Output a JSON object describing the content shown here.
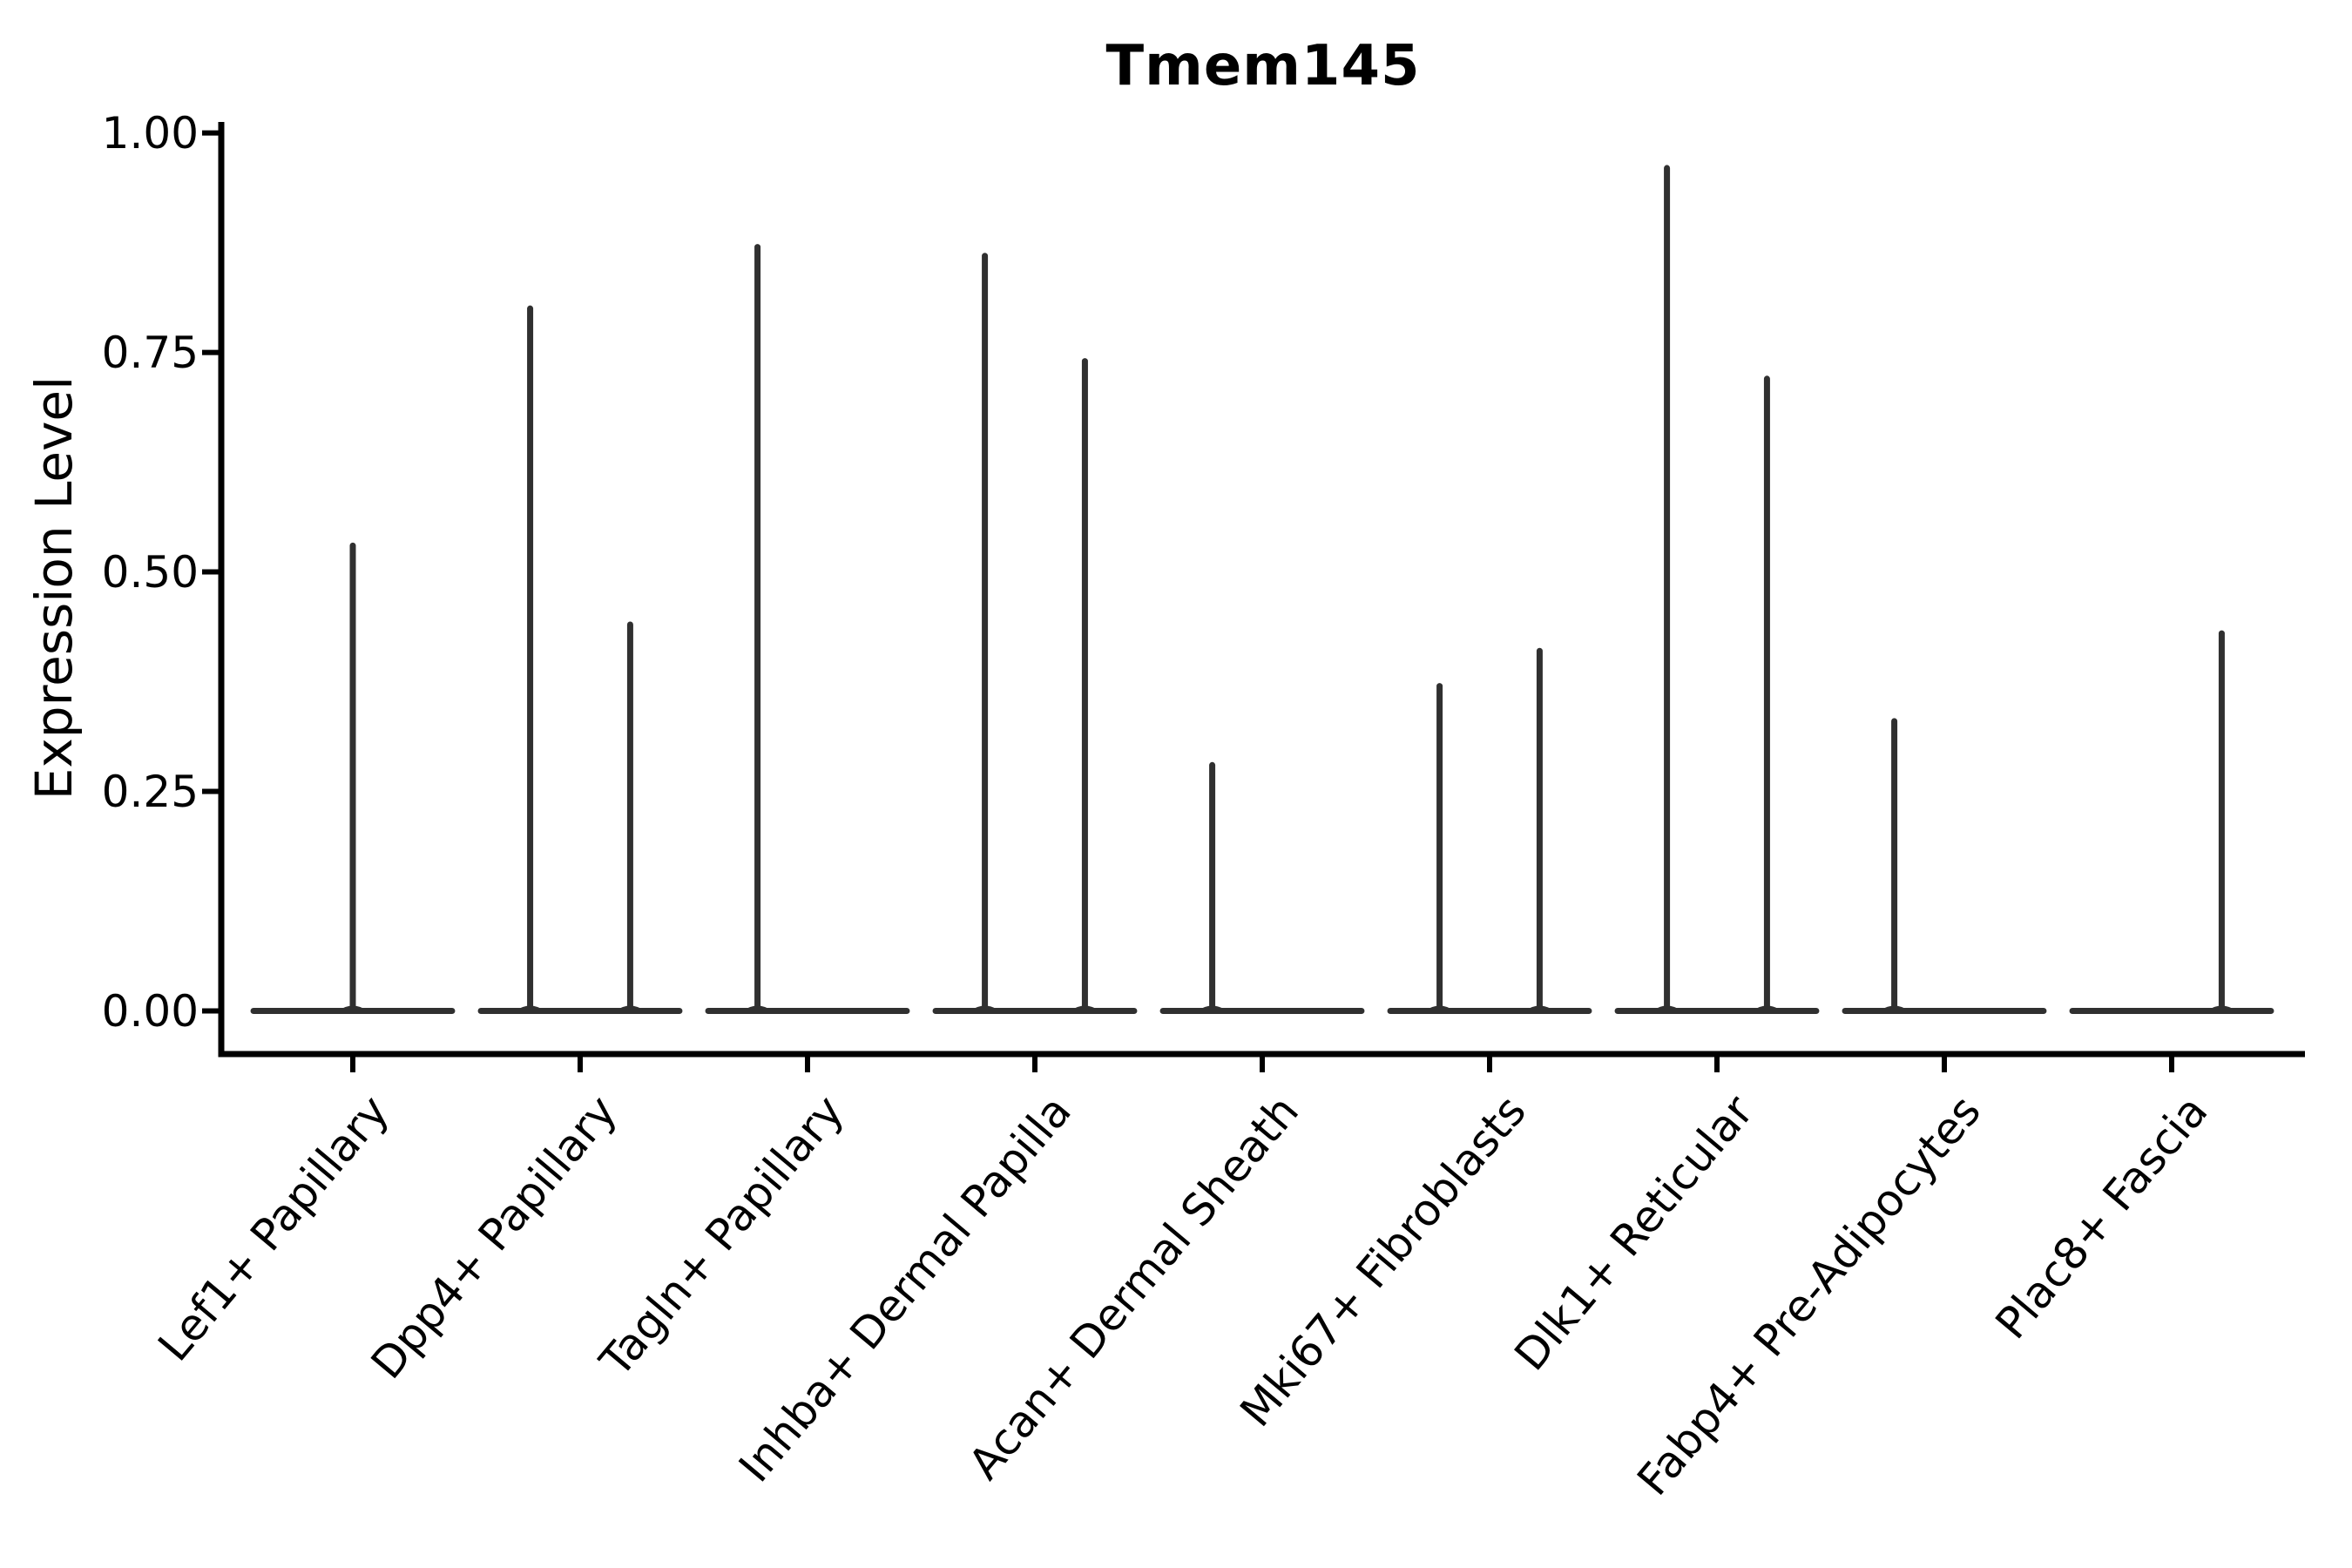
{
  "chart_data": {
    "type": "violin",
    "title": "Tmem145",
    "xlabel": "",
    "ylabel": "Expression Level",
    "legend": "none",
    "grid": false,
    "ylim": [
      -0.049,
      1.013
    ],
    "y_ticks": [
      {
        "label": "0.00",
        "value": 0.0
      },
      {
        "label": "0.25",
        "value": 0.25
      },
      {
        "label": "0.50",
        "value": 0.5
      },
      {
        "label": "0.75",
        "value": 0.75
      },
      {
        "label": "1.00",
        "value": 1.0
      }
    ],
    "categories": [
      "Lef1+ Papillary",
      "Dpp4+ Papillary",
      "Tagln+ Papillary",
      "Inhba+ Dermal Papilla",
      "Acan+ Dermal Sheath",
      "Mki67+ Fibroblasts",
      "Dlk1+ Reticular",
      "Fabp4+ Pre-Adipocytes",
      "Plac8+ Fascia"
    ],
    "violin_width_fraction": 0.9,
    "baseline_value": 0.0,
    "series": [
      {
        "category": "Lef1+ Papillary",
        "spikes": [
          {
            "offset": 0.0,
            "value": 0.53
          }
        ]
      },
      {
        "category": "Dpp4+ Papillary",
        "spikes": [
          {
            "offset": -0.22,
            "value": 0.8
          },
          {
            "offset": 0.22,
            "value": 0.44
          }
        ]
      },
      {
        "category": "Tagln+ Papillary",
        "spikes": [
          {
            "offset": -0.22,
            "value": 0.87
          }
        ]
      },
      {
        "category": "Inhba+ Dermal Papilla",
        "spikes": [
          {
            "offset": -0.22,
            "value": 0.86
          },
          {
            "offset": 0.22,
            "value": 0.74
          }
        ]
      },
      {
        "category": "Acan+ Dermal Sheath",
        "spikes": [
          {
            "offset": -0.22,
            "value": 0.28
          }
        ]
      },
      {
        "category": "Mki67+ Fibroblasts",
        "spikes": [
          {
            "offset": -0.22,
            "value": 0.37
          },
          {
            "offset": 0.22,
            "value": 0.41
          }
        ]
      },
      {
        "category": "Dlk1+ Reticular",
        "spikes": [
          {
            "offset": -0.22,
            "value": 0.96
          },
          {
            "offset": 0.22,
            "value": 0.72
          }
        ]
      },
      {
        "category": "Fabp4+ Pre-Adipocytes",
        "spikes": [
          {
            "offset": -0.22,
            "value": 0.33
          }
        ]
      },
      {
        "category": "Plac8+ Fascia",
        "spikes": [
          {
            "offset": 0.22,
            "value": 0.43
          }
        ]
      }
    ],
    "colors": {
      "violin_line": "#303030",
      "axis": "#000000",
      "text": "#000000",
      "background": "#ffffff"
    }
  }
}
